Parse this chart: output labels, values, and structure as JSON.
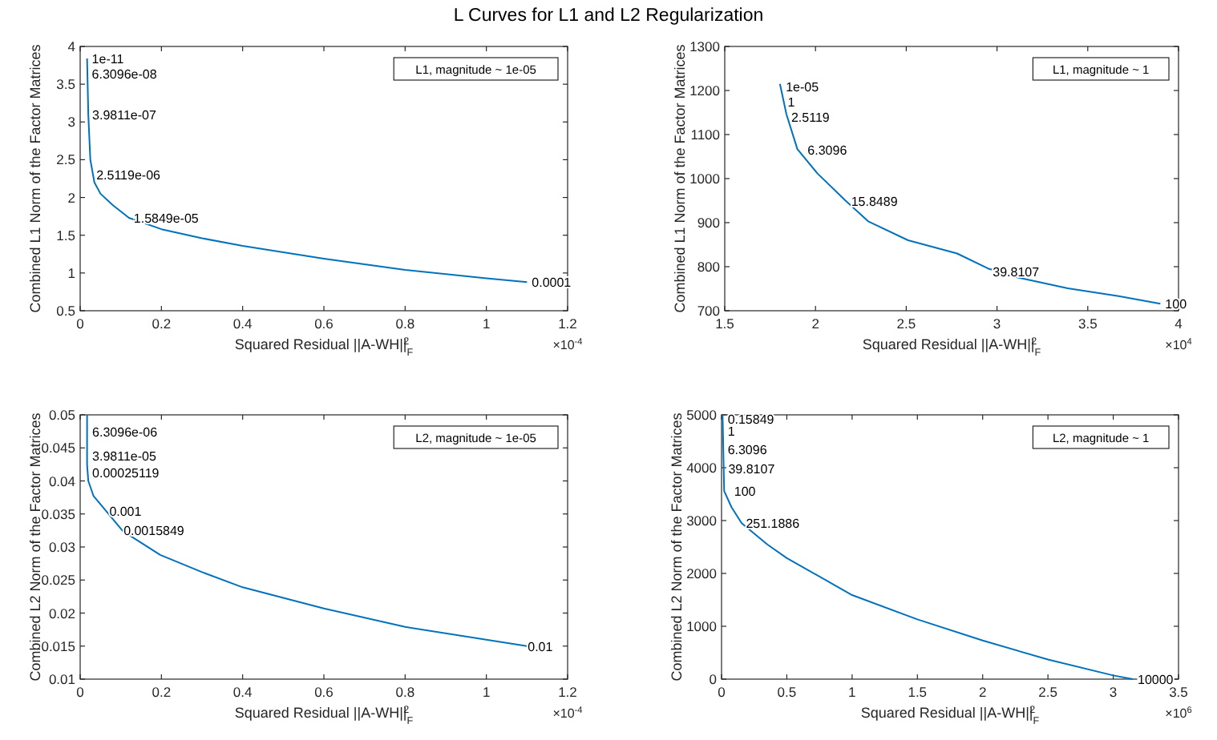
{
  "chart_data": [
    {
      "type": "line",
      "title": "L Curves for L1 and L2 Regularization",
      "xlabel": "Squared Residual ||A-WH||$_{F}$$^{2}$",
      "ylabel": "Combined L1  Norm of the Factor Matrices",
      "xlim": [
        0,
        1.2
      ],
      "xticks": [
        0,
        0.2,
        0.4,
        0.6,
        0.8,
        1,
        1.2
      ],
      "ylim": [
        0.5,
        4
      ],
      "yticks": [
        0.5,
        1,
        1.5,
        2,
        2.5,
        3,
        3.5,
        4
      ],
      "series": [
        {
          "color": "#0072bd",
          "x": [
            0.017,
            0.018,
            0.02,
            0.025,
            0.035,
            0.05,
            0.08,
            0.12,
            0.2,
            0.3,
            0.4,
            0.6,
            0.8,
            1.0,
            1.1
          ],
          "values": [
            3.84,
            3.6,
            3.1,
            2.5,
            2.2,
            2.05,
            1.9,
            1.73,
            1.58,
            1.46,
            1.36,
            1.19,
            1.04,
            0.93,
            0.88
          ]
        }
      ],
      "annotations": [
        "L1, magnitude ~ 1e-05",
        "×10$^{-4}$",
        {
          "text": "1e-11",
          "x": 0.017,
          "y": 3.84
        },
        {
          "text": "6.3096e-08",
          "x": 0.017,
          "y": 3.64
        },
        {
          "text": "3.9811e-07",
          "x": 0.018,
          "y": 3.1
        },
        {
          "text": "2.5119e-06",
          "x": 0.028,
          "y": 2.3
        },
        {
          "text": "1.5849e-05",
          "x": 0.12,
          "y": 1.73
        },
        {
          "text": "0.0001",
          "x": 1.1,
          "y": 0.88
        }
      ]
    },
    {
      "type": "line",
      "xlabel": "Squared Residual ||A-WH||$_{F}$$^{2}$",
      "ylabel": "Combined L1  Norm of the Factor Matrices",
      "xlim": [
        1.5,
        4
      ],
      "xticks": [
        1.5,
        2,
        2.5,
        3,
        3.5,
        4
      ],
      "ylim": [
        700,
        1300
      ],
      "yticks": [
        700,
        800,
        900,
        1000,
        1100,
        1200,
        1300
      ],
      "series": [
        {
          "color": "#0072bd",
          "x": [
            1.804,
            1.84,
            1.9,
            2.01,
            2.163,
            2.29,
            2.51,
            2.78,
            2.95,
            3.12,
            3.39,
            3.67,
            3.9
          ],
          "values": [
            1215,
            1146,
            1067,
            1012,
            951,
            903,
            860,
            830,
            796,
            775,
            751,
            733,
            716
          ]
        }
      ],
      "annotations": [
        "L1, magnitude ~ 1",
        "×10$^{4}$",
        {
          "text": "1e-05",
          "x": 1.81,
          "y": 1210
        },
        {
          "text": "1",
          "x": 1.82,
          "y": 1175
        },
        {
          "text": "2.5119",
          "x": 1.84,
          "y": 1140
        },
        {
          "text": "6.3096",
          "x": 1.93,
          "y": 1065
        },
        {
          "text": "15.8489",
          "x": 2.17,
          "y": 950
        },
        {
          "text": "39.8107",
          "x": 2.95,
          "y": 790
        },
        {
          "text": "100",
          "x": 3.9,
          "y": 716
        }
      ]
    },
    {
      "type": "line",
      "xlabel": "Squared Residual ||A-WH||$_{F}$$^{2}$",
      "ylabel": "Combined L2 Norm of the Factor Matrices",
      "xlim": [
        0,
        1.2
      ],
      "xticks": [
        0,
        0.2,
        0.4,
        0.6,
        0.8,
        1,
        1.2
      ],
      "ylim": [
        0.01,
        0.05
      ],
      "yticks": [
        0.01,
        0.015,
        0.02,
        0.025,
        0.03,
        0.035,
        0.04,
        0.045,
        0.05
      ],
      "series": [
        {
          "color": "#0072bd",
          "x": [
            0.017,
            0.017,
            0.02,
            0.033,
            0.066,
            0.105,
            0.197,
            0.3,
            0.4,
            0.6,
            0.8,
            1.1
          ],
          "values": [
            0.05,
            0.0425,
            0.04,
            0.0377,
            0.0353,
            0.0324,
            0.0288,
            0.0262,
            0.0239,
            0.0207,
            0.0179,
            0.015
          ]
        }
      ],
      "annotations": [
        "L2, magnitude ~ 1e-05",
        "×10$^{-4}$",
        {
          "text": "6.3096e-06",
          "x": 0.018,
          "y": 0.0475
        },
        {
          "text": "3.9811e-05",
          "x": 0.018,
          "y": 0.0438
        },
        {
          "text": "0.00025119",
          "x": 0.018,
          "y": 0.0413
        },
        {
          "text": "0.001",
          "x": 0.06,
          "y": 0.0355
        },
        {
          "text": "0.0015849",
          "x": 0.095,
          "y": 0.0325
        },
        {
          "text": "0.01",
          "x": 1.09,
          "y": 0.015
        }
      ]
    },
    {
      "type": "line",
      "xlabel": "Squared Residual ||A-WH||$_{F}$$^{2}$",
      "ylabel": "Combined L2 Norm of the Factor Matrices",
      "xlim": [
        0,
        3.5
      ],
      "xticks": [
        0,
        0.5,
        1,
        1.5,
        2,
        2.5,
        3,
        3.5
      ],
      "ylim": [
        0,
        5000
      ],
      "yticks": [
        0,
        1000,
        2000,
        3000,
        4000,
        5000
      ],
      "series": [
        {
          "color": "#0072bd",
          "x": [
            0.008,
            0.02,
            0.077,
            0.154,
            0.35,
            0.5,
            1,
            1.5,
            2,
            2.5,
            3,
            3.15
          ],
          "values": [
            5000,
            3560,
            3250,
            2950,
            2550,
            2290,
            1590,
            1130,
            730,
            370,
            70,
            0
          ]
        }
      ],
      "annotations": [
        "L2, magnitude ~ 1",
        "×10$^{6}$",
        {
          "text": "0.15849",
          "x": 0.01,
          "y": 4930
        },
        {
          "text": "1",
          "x": 0.01,
          "y": 4700
        },
        {
          "text": "6.3096",
          "x": 0.01,
          "y": 4350
        },
        {
          "text": "39.8107",
          "x": 0.015,
          "y": 3990
        },
        {
          "text": "100",
          "x": 0.06,
          "y": 3560
        },
        {
          "text": "251.1886",
          "x": 0.15,
          "y": 2950
        },
        {
          "text": "10000",
          "x": 3.15,
          "y": 0
        }
      ]
    }
  ]
}
